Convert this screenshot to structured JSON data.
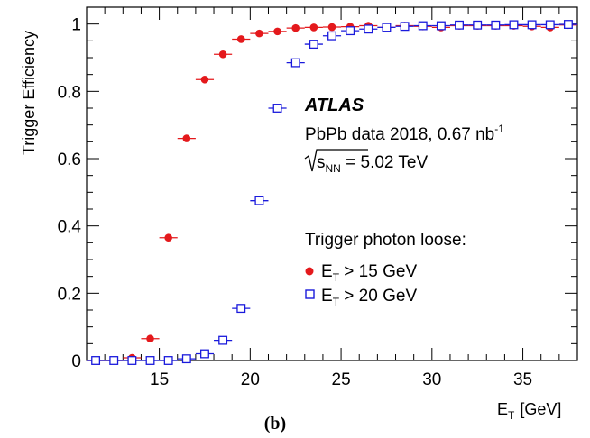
{
  "chart_data": {
    "type": "scatter",
    "title": "",
    "xlabel_main": "E",
    "xlabel_sub": "T",
    "xlabel_unit": "[GeV]",
    "ylabel": "Trigger Efficiency",
    "xlim": [
      11,
      38
    ],
    "ylim": [
      0,
      1.05
    ],
    "xticks": [
      15,
      20,
      25,
      30,
      35
    ],
    "xtick_labels": [
      "15",
      "20",
      "25",
      "30",
      "35"
    ],
    "yticks": [
      0,
      0.2,
      0.4,
      0.6,
      0.8,
      1
    ],
    "ytick_labels": [
      "0",
      "0.2",
      "0.4",
      "0.6",
      "0.8",
      "1"
    ],
    "x_half_bin": 0.5,
    "grid": false,
    "legend_position": "center-right",
    "experiment": "ATLAS",
    "dataset_text": "PbPb data 2018, 0.67 nb",
    "dataset_sup": "-1",
    "energy_prefix": "s",
    "energy_sub": "NN",
    "energy_value": " = 5.02 TeV",
    "legend_title": "Trigger photon loose:",
    "panel_label": "(b)",
    "series": [
      {
        "name_main": "E",
        "name_sub": "T",
        "name_rest": " > 15 GeV",
        "marker": "filled-circle",
        "color": "#e4191c",
        "x": [
          11.5,
          12.5,
          13.5,
          14.5,
          15.5,
          16.5,
          17.5,
          18.5,
          19.5,
          20.5,
          21.5,
          22.5,
          23.5,
          24.5,
          25.5,
          26.5,
          27.5,
          28.5,
          29.5,
          30.5,
          31.5,
          32.5,
          33.5,
          34.5,
          35.5,
          36.5,
          37.5
        ],
        "y": [
          0.0,
          0.0,
          0.008,
          0.065,
          0.365,
          0.66,
          0.835,
          0.91,
          0.955,
          0.972,
          0.978,
          0.988,
          0.99,
          0.991,
          0.992,
          0.995,
          0.99,
          0.995,
          0.993,
          0.99,
          0.995,
          0.995,
          0.995,
          0.995,
          0.993,
          0.99,
          0.997
        ]
      },
      {
        "name_main": "E",
        "name_sub": "T",
        "name_rest": " > 20 GeV",
        "marker": "open-square",
        "color": "#1a1adc",
        "x": [
          11.5,
          12.5,
          13.5,
          14.5,
          15.5,
          16.5,
          17.5,
          18.5,
          19.5,
          20.5,
          21.5,
          22.5,
          23.5,
          24.5,
          25.5,
          26.5,
          27.5,
          28.5,
          29.5,
          30.5,
          31.5,
          32.5,
          33.5,
          34.5,
          35.5,
          36.5,
          37.5
        ],
        "y": [
          0.0,
          0.0,
          0.0,
          0.0,
          0.0,
          0.005,
          0.02,
          0.06,
          0.155,
          0.475,
          0.75,
          0.885,
          0.94,
          0.965,
          0.98,
          0.985,
          0.99,
          0.993,
          0.995,
          0.995,
          0.997,
          0.997,
          0.997,
          0.998,
          0.998,
          0.998,
          0.999
        ]
      }
    ]
  }
}
